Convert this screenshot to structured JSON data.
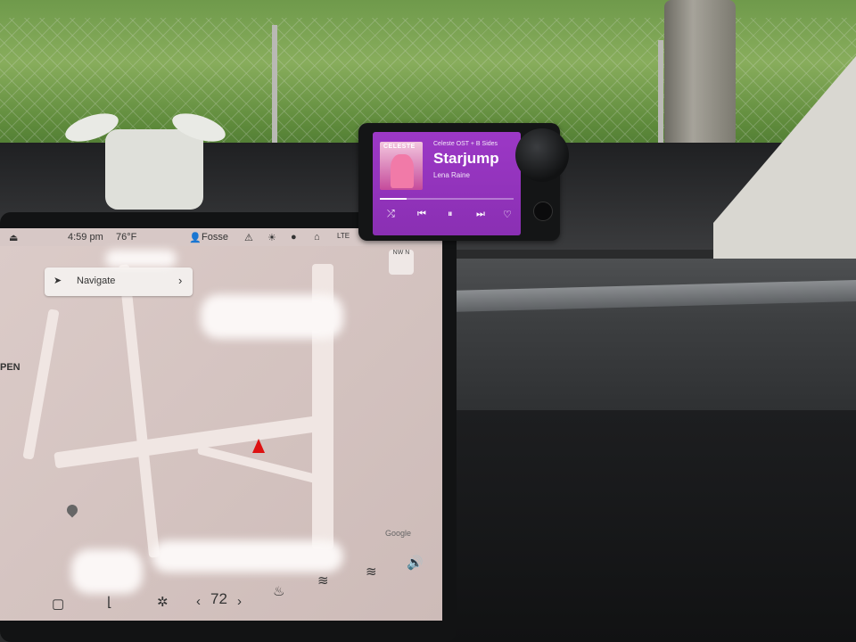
{
  "car_thing": {
    "album": "Celeste OST + B Sides",
    "track": "Starjump",
    "artist": "Lena Raine",
    "album_art_text": "CELESTE",
    "progress_fraction": 0.2,
    "controls": {
      "shuffle": "⤮",
      "previous": "⏮",
      "play_pause": "⏸",
      "next": "⏭",
      "like": "♡"
    },
    "brand_color": "#9c38c6"
  },
  "tesla": {
    "status": {
      "time": "4:59 pm",
      "temperature": "76°F",
      "profile_name": "Fosse",
      "lte": "LTE"
    },
    "nav_card": {
      "label": "Navigate",
      "chevron": "›"
    },
    "compass": "NW N",
    "map_attribution": "Google",
    "side_label": "PEN",
    "climate": {
      "temperature": "72"
    }
  }
}
